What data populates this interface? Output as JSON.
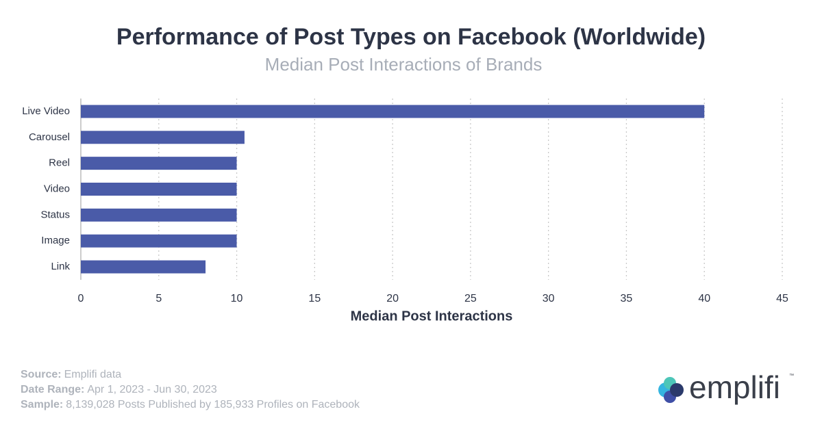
{
  "chart_data": {
    "type": "bar",
    "orientation": "horizontal",
    "title": "Performance of Post Types on Facebook (Worldwide)",
    "subtitle": "Median Post Interactions of Brands",
    "x_label": "Median Post Interactions",
    "categories": [
      "Live Video",
      "Carousel",
      "Reel",
      "Video",
      "Status",
      "Image",
      "Link"
    ],
    "values": [
      40,
      10.5,
      10,
      10,
      10,
      10,
      8
    ],
    "color": "#4a5ba8",
    "xlim": [
      0,
      45
    ],
    "xticks": [
      0,
      5,
      10,
      15,
      20,
      25,
      30,
      35,
      40,
      45
    ],
    "grid": true
  },
  "footer": [
    {
      "label": "Source:",
      "text": "Emplifi data"
    },
    {
      "label": "Date Range:",
      "text": "Apr 1, 2023 - Jun 30, 2023"
    },
    {
      "label": "Sample:",
      "text": "8,139,028 Posts Published by 185,933 Profiles on Facebook"
    }
  ],
  "logo": {
    "text": "emplifi",
    "mark": "™"
  }
}
